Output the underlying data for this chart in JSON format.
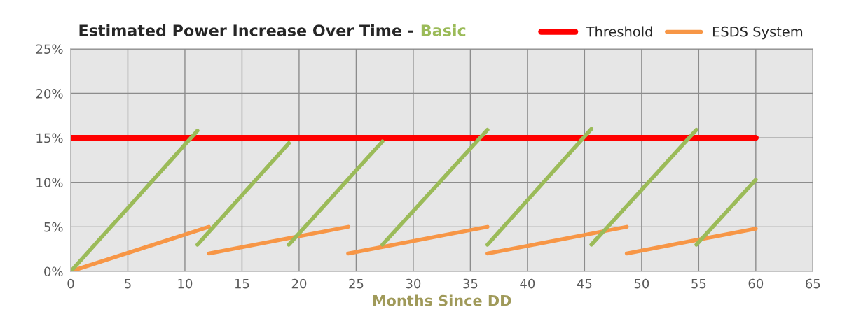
{
  "chart_data": {
    "type": "line",
    "title": "Estimated Power Increase Over Time - Basic",
    "xlabel": "Months Since DD",
    "series": [
      {
        "name": "Threshold",
        "color": "#ff0000",
        "x": [
          0,
          60
        ],
        "values": [
          15,
          15
        ]
      },
      {
        "name": "ESDS System",
        "color": "#f79646",
        "x": [
          0,
          12.1
        ],
        "values": [
          0,
          5
        ]
      },
      {
        "color": "#f79646",
        "x": [
          12.1,
          24.3
        ],
        "values": [
          2,
          5
        ]
      },
      {
        "color": "#f79646",
        "x": [
          24.3,
          36.5
        ],
        "values": [
          2,
          5
        ]
      },
      {
        "color": "#f79646",
        "x": [
          36.5,
          48.7
        ],
        "values": [
          2,
          5
        ]
      },
      {
        "color": "#f79646",
        "x": [
          48.7,
          60
        ],
        "values": [
          2,
          4.8
        ]
      },
      {
        "color": "#9bbb59",
        "x": [
          0,
          11.1
        ],
        "values": [
          0,
          15.8
        ]
      },
      {
        "color": "#9bbb59",
        "x": [
          11.1,
          19.1
        ],
        "values": [
          3,
          14.4
        ]
      },
      {
        "color": "#9bbb59",
        "x": [
          19.1,
          27.3
        ],
        "values": [
          3,
          14.6
        ]
      },
      {
        "color": "#9bbb59",
        "x": [
          27.3,
          36.5
        ],
        "values": [
          3,
          15.9
        ]
      },
      {
        "color": "#9bbb59",
        "x": [
          36.5,
          45.6
        ],
        "values": [
          3,
          16
        ]
      },
      {
        "color": "#9bbb59",
        "x": [
          45.6,
          54.8
        ],
        "values": [
          3,
          15.9
        ]
      },
      {
        "color": "#9bbb59",
        "x": [
          54.8,
          60
        ],
        "values": [
          3,
          10.3
        ]
      }
    ],
    "xlim": [
      0,
      65
    ],
    "xticks": [
      0,
      5,
      10,
      15,
      20,
      25,
      30,
      35,
      40,
      45,
      50,
      55,
      60,
      65
    ],
    "ylim": [
      0,
      25
    ],
    "yticks": [
      {
        "value": 0,
        "label": "0%"
      },
      {
        "value": 5,
        "label": "5%"
      },
      {
        "value": 10,
        "label": "10%"
      },
      {
        "value": 15,
        "label": "15%"
      },
      {
        "value": 20,
        "label": "20%"
      },
      {
        "value": 25,
        "label": "25%"
      }
    ],
    "grid": true,
    "legend": "top right",
    "marker": "none",
    "line_style": "solid"
  }
}
